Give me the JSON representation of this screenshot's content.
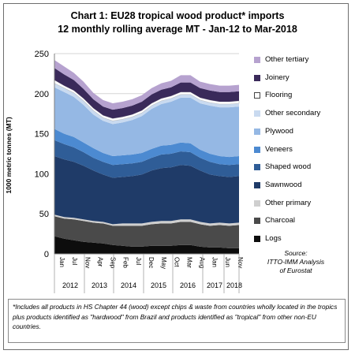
{
  "chart_data": {
    "type": "area",
    "title": "Chart 1: EU28 tropical wood product* imports",
    "subtitle": "12 monthly rolling average MT - Jan-12 to Mar-2018",
    "ylabel": "1000 metric tonnes (MT)",
    "ylim": [
      0,
      250
    ],
    "yticks": [
      0,
      50,
      100,
      150,
      200,
      250
    ],
    "x_tick_labels": [
      "Jan",
      "Jul",
      "Nov",
      "Apr",
      "Sep",
      "Feb",
      "Jul",
      "Dec",
      "May",
      "Oct",
      "Mar",
      "Aug",
      "Jan",
      "Jun",
      "Nov"
    ],
    "x_year_labels": [
      "2012",
      "2013",
      "2014",
      "2015",
      "2016",
      "2017",
      "2018"
    ],
    "legend_position": "right",
    "x": [
      "Jan-12",
      "May-12",
      "Sep-12",
      "Jan-13",
      "May-13",
      "Sep-13",
      "Jan-14",
      "May-14",
      "Sep-14",
      "Jan-15",
      "May-15",
      "Sep-15",
      "Jan-16",
      "May-16",
      "Sep-16",
      "Jan-17",
      "May-17",
      "Sep-17",
      "Jan-18",
      "Mar-18"
    ],
    "series": [
      {
        "name": "Logs",
        "color": "#0d0d0d",
        "values": [
          22,
          19,
          17,
          15,
          14,
          13,
          11,
          10,
          9,
          9,
          10,
          10,
          10,
          11,
          11,
          9,
          8,
          8,
          7,
          7
        ]
      },
      {
        "name": "Charcoal",
        "color": "#4a4a4a",
        "values": [
          25,
          25,
          26,
          26,
          25,
          25,
          24,
          25,
          26,
          26,
          27,
          28,
          28,
          29,
          29,
          28,
          27,
          28,
          28,
          29
        ]
      },
      {
        "name": "Other primary",
        "color": "#cfcfcf",
        "values": [
          2,
          2,
          2,
          2,
          2,
          2,
          2,
          3,
          3,
          3,
          3,
          3,
          3,
          3,
          3,
          3,
          3,
          3,
          3,
          3
        ]
      },
      {
        "name": "Sawnwood",
        "color": "#1f3b68",
        "values": [
          73,
          72,
          70,
          67,
          63,
          59,
          58,
          58,
          59,
          61,
          64,
          66,
          67,
          68,
          67,
          64,
          61,
          58,
          58,
          58
        ]
      },
      {
        "name": "Shaped wood",
        "color": "#2f5d97",
        "values": [
          20,
          19,
          18,
          17,
          16,
          16,
          16,
          16,
          16,
          16,
          16,
          17,
          17,
          17,
          17,
          16,
          16,
          15,
          15,
          15
        ]
      },
      {
        "name": "Veneers",
        "color": "#4c8ad1",
        "values": [
          14,
          13,
          13,
          12,
          12,
          11,
          11,
          11,
          11,
          11,
          11,
          11,
          11,
          11,
          11,
          10,
          10,
          10,
          10,
          10
        ]
      },
      {
        "name": "Plywood",
        "color": "#95b8e4",
        "values": [
          52,
          52,
          50,
          47,
          42,
          40,
          40,
          41,
          43,
          46,
          50,
          52,
          54,
          56,
          57,
          58,
          60,
          61,
          62,
          62
        ]
      },
      {
        "name": "Other secondary",
        "color": "#c9daf0",
        "values": [
          5,
          5,
          5,
          5,
          5,
          4,
          4,
          4,
          4,
          4,
          4,
          4,
          4,
          4,
          4,
          4,
          4,
          4,
          4,
          4
        ]
      },
      {
        "name": "Flooring",
        "color": "#ffffff",
        "values": [
          4,
          3,
          3,
          3,
          3,
          3,
          3,
          3,
          3,
          3,
          3,
          3,
          3,
          3,
          3,
          3,
          3,
          3,
          3,
          3
        ]
      },
      {
        "name": "Joinery",
        "color": "#3a2a5a",
        "values": [
          15,
          14,
          13,
          12,
          11,
          11,
          11,
          11,
          11,
          11,
          11,
          11,
          11,
          12,
          12,
          12,
          12,
          12,
          12,
          12
        ]
      },
      {
        "name": "Other tertiary",
        "color": "#b6a2cf",
        "values": [
          10,
          10,
          9,
          9,
          8,
          8,
          8,
          8,
          8,
          8,
          8,
          8,
          8,
          9,
          9,
          8,
          8,
          8,
          8,
          8
        ]
      }
    ]
  },
  "source_lines": [
    "Source:",
    "ITTO-IMM Analysis",
    "of Eurostat"
  ],
  "footnote": "*Includes all products in HS Chapter 44 (wood) except chips & waste from countries wholly located in the tropics plus products identified as \"hardwood\" from Brazil and products identified as \"tropical\" from other non-EU countries."
}
